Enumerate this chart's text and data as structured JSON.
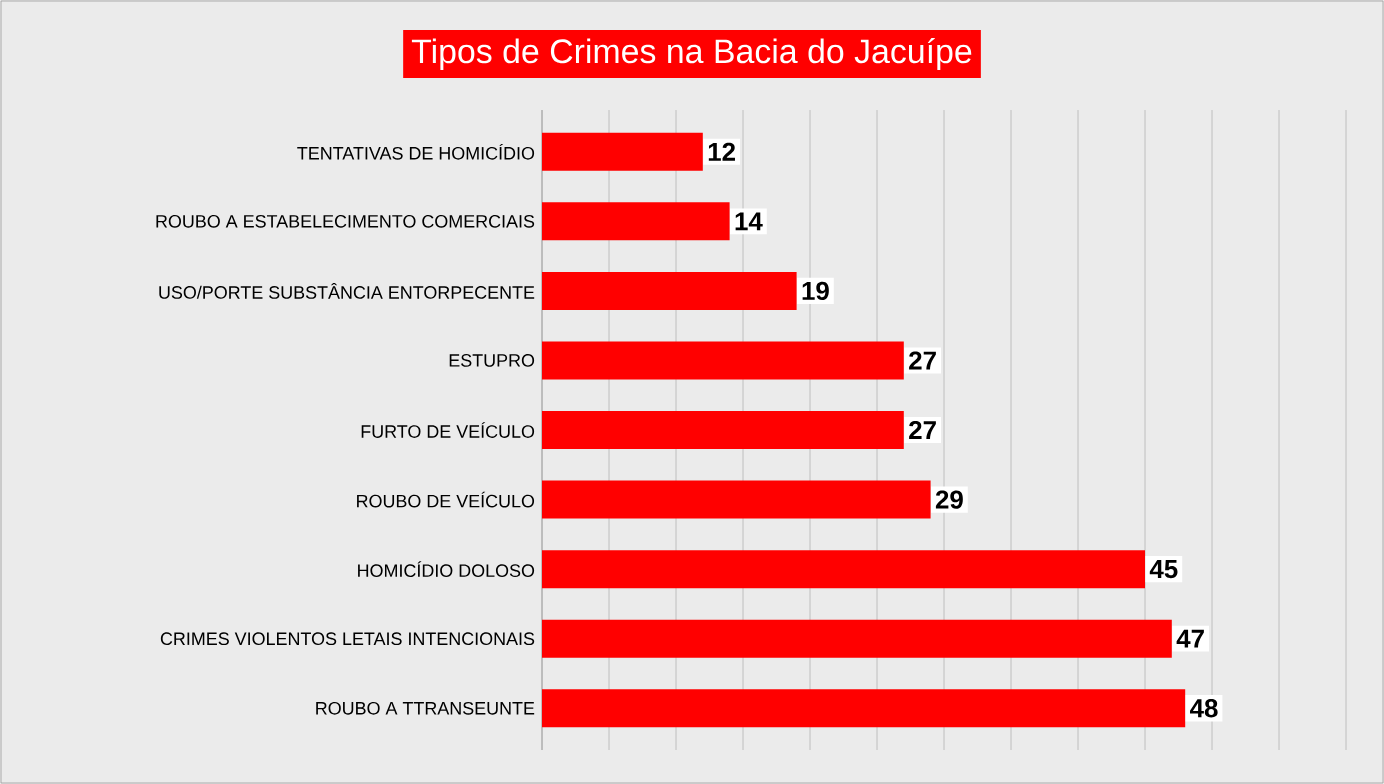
{
  "chart_data": {
    "type": "bar",
    "orientation": "horizontal",
    "title": "Tipos de Crimes na Bacia do Jacuípe",
    "categories": [
      "TENTATIVAS DE HOMICÍDIO",
      "ROUBO A ESTABELECIMENTO COMERCIAIS",
      "USO/PORTE SUBSTÂNCIA ENTORPECENTE",
      "ESTUPRO",
      "FURTO DE VEÍCULO",
      "ROUBO DE VEÍCULO",
      "HOMICÍDIO DOLOSO",
      "CRIMES VIOLENTOS LETAIS INTENCIONAIS",
      "ROUBO A TTRANSEUNTE"
    ],
    "values": [
      12,
      14,
      19,
      27,
      27,
      29,
      45,
      47,
      48
    ],
    "color": "#ff0000",
    "data_labels": true,
    "grid": "x",
    "tick_labels": "y"
  }
}
